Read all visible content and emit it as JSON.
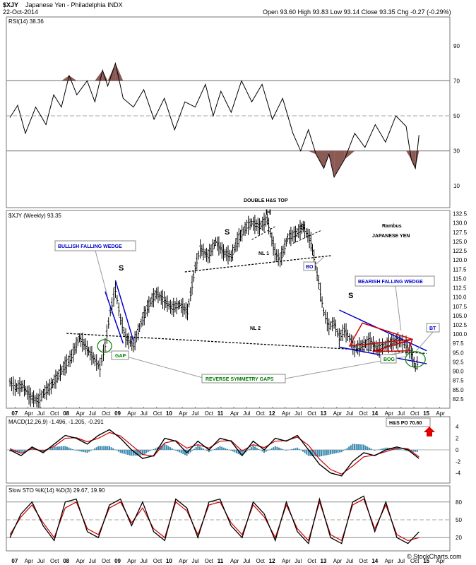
{
  "header": {
    "symbol": "$XJY",
    "name": "Japanese Yen - Philadelphia INDX",
    "date": "22-Oct-2014",
    "ohlc": "Open 93.60  High 93.83  Low 93.14  Close 93.35  Chg -0.27 (-0.29%)",
    "watermark": "© StockCharts.com"
  },
  "chart_data": [
    {
      "type": "line",
      "panel": "RSI",
      "title": "RSI(14) 38.36",
      "ylim": [
        0,
        100
      ],
      "yticks": [
        10,
        30,
        50,
        70,
        90
      ],
      "hlines": [
        30,
        50,
        70
      ],
      "series": [
        {
          "x": [
            2006.9,
            2007.05,
            2007.2,
            2007.4,
            2007.6,
            2007.75,
            2007.9,
            2008.05,
            2008.2,
            2008.4,
            2008.55,
            2008.7,
            2008.8,
            2008.95,
            2009.1,
            2009.3,
            2009.5,
            2009.7,
            2009.9,
            2010.1,
            2010.3,
            2010.5,
            2010.7,
            2010.85,
            2011.0,
            2011.2,
            2011.4,
            2011.6,
            2011.8,
            2012.0,
            2012.2,
            2012.4,
            2012.55,
            2012.7,
            2012.85,
            2013.0,
            2013.1,
            2013.2,
            2013.4,
            2013.6,
            2013.8,
            2014.0,
            2014.2,
            2014.4,
            2014.6,
            2014.7,
            2014.78,
            2014.85
          ],
          "values": [
            49,
            56,
            40,
            55,
            45,
            62,
            55,
            73,
            62,
            70,
            58,
            76,
            67,
            80,
            60,
            55,
            65,
            48,
            60,
            42,
            58,
            55,
            68,
            50,
            64,
            52,
            70,
            58,
            68,
            48,
            60,
            40,
            30,
            42,
            28,
            20,
            28,
            15,
            25,
            40,
            32,
            45,
            35,
            50,
            44,
            25,
            20,
            39
          ]
        }
      ]
    },
    {
      "type": "line",
      "panel": "Price",
      "title": "$XJY (Weekly) 93.35",
      "xlabel": "",
      "ylabel": "",
      "ylim": [
        80,
        133
      ],
      "yticks": [
        82.5,
        85.0,
        87.5,
        90.0,
        92.5,
        95.0,
        97.5,
        100.0,
        102.5,
        105.0,
        107.5,
        110.0,
        112.5,
        115.0,
        117.5,
        120.0,
        122.5,
        125.0,
        127.5,
        130.0,
        132.5
      ],
      "xticks": [
        "07",
        "Apr",
        "Jul",
        "Oct",
        "08",
        "Apr",
        "Jul",
        "Oct",
        "09",
        "Apr",
        "Jul",
        "Oct",
        "10",
        "Apr",
        "Jul",
        "Oct",
        "11",
        "Apr",
        "Jul",
        "Oct",
        "12",
        "Apr",
        "Jul",
        "Oct",
        "13",
        "Apr",
        "Jul",
        "Oct",
        "14",
        "Apr",
        "Jul",
        "Oct",
        "15",
        "Apr"
      ],
      "series": [
        {
          "name": "$XJY",
          "x": [
            2006.9,
            2007.0,
            2007.15,
            2007.3,
            2007.45,
            2007.55,
            2007.7,
            2007.85,
            2008.0,
            2008.1,
            2008.25,
            2008.4,
            2008.55,
            2008.65,
            2008.75,
            2008.85,
            2008.95,
            2009.05,
            2009.15,
            2009.3,
            2009.45,
            2009.6,
            2009.75,
            2009.9,
            2010.05,
            2010.2,
            2010.35,
            2010.5,
            2010.6,
            2010.75,
            2010.9,
            2011.05,
            2011.2,
            2011.35,
            2011.5,
            2011.6,
            2011.75,
            2011.9,
            2012.05,
            2012.15,
            2012.3,
            2012.45,
            2012.6,
            2012.75,
            2012.9,
            2013.0,
            2013.1,
            2013.2,
            2013.3,
            2013.4,
            2013.5,
            2013.6,
            2013.75,
            2013.9,
            2014.05,
            2014.2,
            2014.35,
            2014.5,
            2014.6,
            2014.7,
            2014.78,
            2014.85
          ],
          "values": [
            87,
            85.5,
            86,
            83,
            82,
            84,
            86,
            89,
            92,
            94,
            99,
            96,
            93,
            91,
            97,
            106,
            112,
            104,
            99,
            97,
            103,
            108,
            111,
            109,
            107,
            108,
            106,
            118,
            123,
            121,
            125,
            122,
            121,
            126,
            129,
            130,
            129,
            131,
            122,
            120,
            126,
            127,
            129,
            125,
            114,
            106,
            102,
            103,
            99,
            101,
            99,
            96,
            97,
            98,
            96,
            97,
            98,
            98,
            97,
            95,
            91,
            93.35
          ]
        }
      ],
      "hlines_label": [
        "NL 1",
        "NL 2"
      ]
    },
    {
      "type": "line",
      "panel": "MACD",
      "title": "MACD(12,26,9) -1.496, -1.205, -0.291",
      "ylim": [
        -5.5,
        5
      ],
      "yticks": [
        -4,
        -2,
        0,
        2,
        4
      ],
      "series": [
        {
          "name": "MACD",
          "values": [
            0,
            -1,
            0.5,
            -0.5,
            1,
            2.5,
            2,
            1,
            2.5,
            3.5,
            2,
            0,
            -1.5,
            -1,
            2,
            1.5,
            -0.5,
            1.5,
            0,
            2,
            1.5,
            -1,
            1.5,
            0,
            2,
            1.5,
            2.5,
            0,
            -2.5,
            -4,
            -4.5,
            -2,
            -0.5,
            -1,
            0,
            0.5,
            0,
            -1.496
          ]
        },
        {
          "name": "Signal",
          "values": [
            0.2,
            -0.6,
            0.2,
            -0.2,
            0.6,
            2.0,
            2.1,
            1.4,
            2.0,
            3.0,
            2.4,
            0.8,
            -0.8,
            -1.1,
            1.2,
            1.6,
            0.3,
            0.9,
            0.3,
            1.5,
            1.6,
            -0.2,
            0.9,
            0.4,
            1.5,
            1.6,
            2.2,
            0.8,
            -1.6,
            -3.4,
            -4.2,
            -2.8,
            -1.2,
            -0.9,
            -0.3,
            0.3,
            0.2,
            -1.205
          ]
        }
      ]
    },
    {
      "type": "line",
      "panel": "STO",
      "title": "Slow STO %K(14) %D(3) 29.67, 19.90",
      "ylim": [
        0,
        100
      ],
      "yticks": [
        20,
        50,
        80
      ],
      "series": [
        {
          "name": "%K",
          "values": [
            20,
            60,
            80,
            40,
            15,
            80,
            85,
            30,
            20,
            75,
            85,
            40,
            80,
            30,
            15,
            85,
            70,
            20,
            80,
            85,
            40,
            20,
            80,
            60,
            15,
            80,
            30,
            10,
            85,
            20,
            10,
            80,
            90,
            30,
            80,
            20,
            10,
            29.67
          ]
        },
        {
          "name": "%D",
          "values": [
            25,
            55,
            75,
            45,
            20,
            70,
            80,
            35,
            25,
            70,
            80,
            45,
            70,
            35,
            20,
            80,
            65,
            25,
            75,
            80,
            45,
            25,
            75,
            55,
            20,
            75,
            35,
            15,
            80,
            25,
            15,
            75,
            85,
            35,
            75,
            25,
            15,
            19.9
          ]
        }
      ]
    }
  ],
  "annotations": {
    "double_hs": "DOUBLE H&S TOP",
    "h": "H",
    "s": "S",
    "nl1": "NL 1",
    "nl2": "NL 2",
    "rambus": "Rambus",
    "jpy": "JAPANESE YEN",
    "bullish_wedge": "BULLISH FALLING WEDGE",
    "bearish_wedge": "BEARISH FALLING WEDGE",
    "bo": "BO",
    "bt": "BT",
    "bog": "BOG",
    "gap": "GAP",
    "rsg": "REVERSE SYMMETRY GAPS",
    "hs_po": "H&S PO 70.60"
  },
  "colors": {
    "blue": "#0000cc",
    "red": "#cc0000",
    "green": "#008000",
    "rsi_fill": "#8b5a55",
    "macd_hist": "#3b8bb0"
  }
}
